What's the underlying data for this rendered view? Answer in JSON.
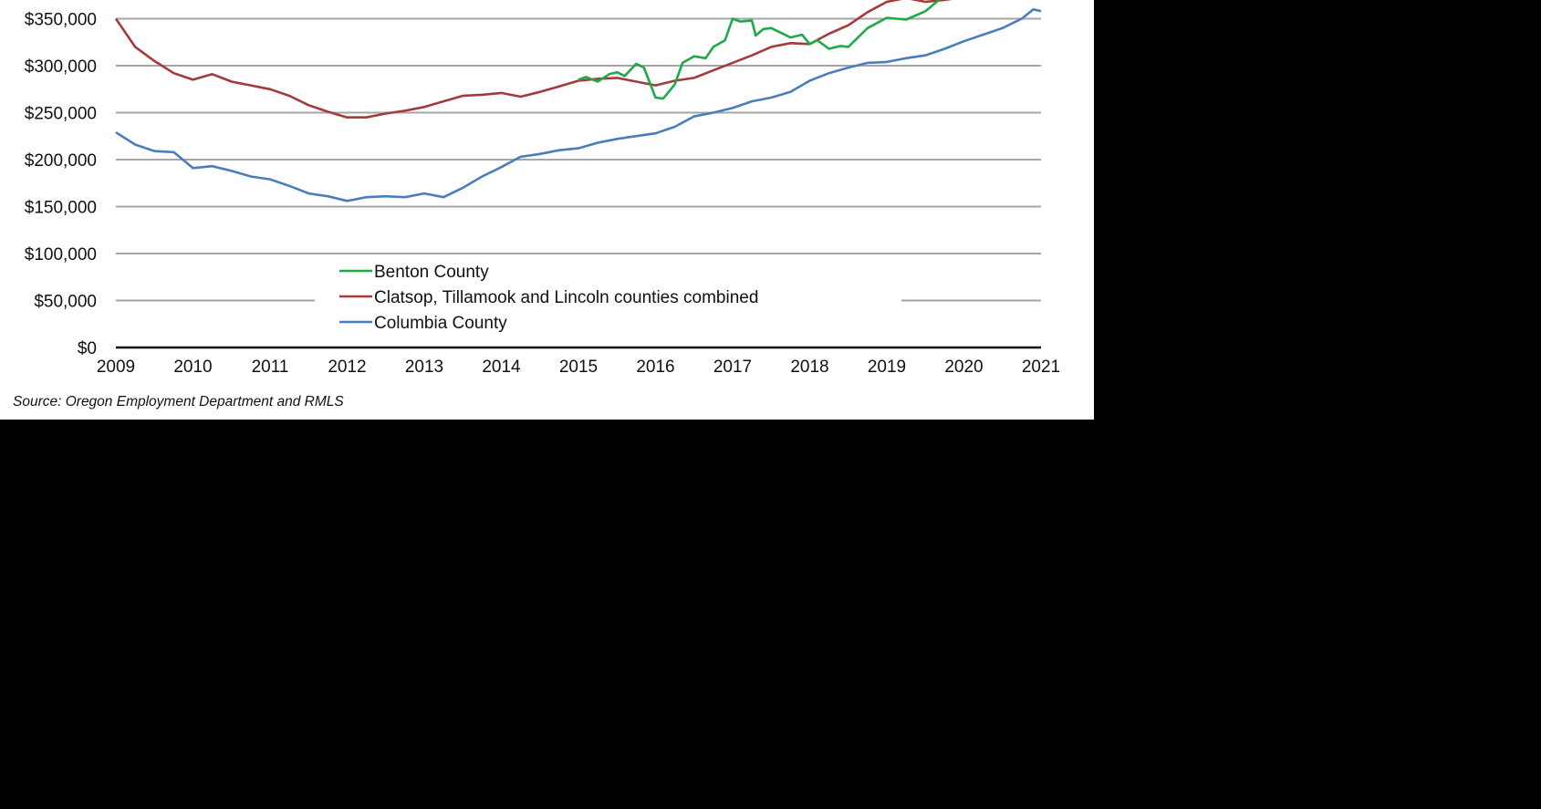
{
  "chart_data": {
    "type": "line",
    "title": "",
    "xlabel": "",
    "ylabel": "",
    "xlim": [
      2009,
      2021
    ],
    "ylim": [
      0,
      350000
    ],
    "x_ticks": [
      "2009",
      "2010",
      "2011",
      "2012",
      "2013",
      "2014",
      "2015",
      "2016",
      "2017",
      "2018",
      "2019",
      "2020",
      "2021"
    ],
    "y_ticks": [
      {
        "value": 0,
        "label": "$0"
      },
      {
        "value": 50000,
        "label": "$50,000"
      },
      {
        "value": 100000,
        "label": "$100,000"
      },
      {
        "value": 150000,
        "label": "$150,000"
      },
      {
        "value": 200000,
        "label": "$200,000"
      },
      {
        "value": 250000,
        "label": "$250,000"
      },
      {
        "value": 300000,
        "label": "$300,000"
      },
      {
        "value": 350000,
        "label": "$350,000"
      }
    ],
    "grid": true,
    "legend_position": "bottom-center",
    "series": [
      {
        "name": "Benton County",
        "color": "#1faa4a",
        "x": [
          2015.0,
          2015.1,
          2015.25,
          2015.4,
          2015.5,
          2015.6,
          2015.75,
          2015.85,
          2016.0,
          2016.1,
          2016.25,
          2016.35,
          2016.5,
          2016.65,
          2016.75,
          2016.9,
          2017.0,
          2017.1,
          2017.25,
          2017.3,
          2017.4,
          2017.5,
          2017.75,
          2017.9,
          2018.0,
          2018.1,
          2018.25,
          2018.4,
          2018.5,
          2018.75,
          2019.0,
          2019.25,
          2019.5,
          2019.75
        ],
        "y": [
          285000,
          288000,
          283000,
          291000,
          293000,
          289000,
          302000,
          298000,
          266000,
          265000,
          280000,
          303000,
          310000,
          308000,
          320000,
          327000,
          350000,
          347000,
          348000,
          332000,
          339000,
          340000,
          330000,
          333000,
          323000,
          327000,
          318000,
          321000,
          320000,
          340000,
          351000,
          349000,
          358000,
          375000
        ]
      },
      {
        "name": "Clatsop, Tillamook and Lincoln counties combined",
        "color": "#a33b3b",
        "x": [
          2009.0,
          2009.25,
          2009.5,
          2009.75,
          2010.0,
          2010.25,
          2010.5,
          2010.75,
          2011.0,
          2011.25,
          2011.5,
          2011.75,
          2012.0,
          2012.25,
          2012.5,
          2012.75,
          2013.0,
          2013.25,
          2013.5,
          2013.75,
          2014.0,
          2014.25,
          2014.5,
          2014.75,
          2015.0,
          2015.25,
          2015.5,
          2015.75,
          2016.0,
          2016.25,
          2016.5,
          2016.75,
          2017.0,
          2017.25,
          2017.5,
          2017.75,
          2018.0,
          2018.25,
          2018.5,
          2018.75,
          2019.0,
          2019.25,
          2019.5,
          2019.75,
          2020.0
        ],
        "y": [
          350000,
          320000,
          305000,
          292000,
          285000,
          291000,
          283000,
          279000,
          275000,
          268000,
          258000,
          251000,
          245000,
          245000,
          249000,
          252000,
          256000,
          262000,
          268000,
          269000,
          271000,
          267000,
          272000,
          278000,
          284000,
          286000,
          287000,
          283000,
          279000,
          284000,
          287000,
          295000,
          303000,
          311000,
          320000,
          324000,
          323000,
          334000,
          343000,
          357000,
          368000,
          372000,
          368000,
          370000,
          373000
        ]
      },
      {
        "name": "Columbia County",
        "color": "#4a7ebb",
        "x": [
          2009.0,
          2009.25,
          2009.5,
          2009.75,
          2010.0,
          2010.25,
          2010.5,
          2010.75,
          2011.0,
          2011.25,
          2011.5,
          2011.75,
          2012.0,
          2012.25,
          2012.5,
          2012.75,
          2013.0,
          2013.25,
          2013.5,
          2013.75,
          2014.0,
          2014.25,
          2014.5,
          2014.75,
          2015.0,
          2015.25,
          2015.5,
          2015.75,
          2016.0,
          2016.25,
          2016.5,
          2016.75,
          2017.0,
          2017.25,
          2017.5,
          2017.75,
          2018.0,
          2018.25,
          2018.5,
          2018.75,
          2019.0,
          2019.25,
          2019.5,
          2019.75,
          2020.0,
          2020.25,
          2020.5,
          2020.75,
          2020.9,
          2021.0
        ],
        "y": [
          229000,
          216000,
          209000,
          208000,
          191000,
          193000,
          188000,
          182000,
          179000,
          172000,
          164000,
          161000,
          156000,
          160000,
          161000,
          160000,
          164000,
          160000,
          170000,
          182000,
          192000,
          203000,
          206000,
          210000,
          212000,
          218000,
          222000,
          225000,
          228000,
          235000,
          246000,
          250000,
          255000,
          262000,
          266000,
          272000,
          284000,
          292000,
          298000,
          303000,
          304000,
          308000,
          311000,
          318000,
          326000,
          333000,
          340000,
          350000,
          360000,
          358000
        ]
      }
    ]
  },
  "source": "Source: Oregon Employment Department and RMLS"
}
